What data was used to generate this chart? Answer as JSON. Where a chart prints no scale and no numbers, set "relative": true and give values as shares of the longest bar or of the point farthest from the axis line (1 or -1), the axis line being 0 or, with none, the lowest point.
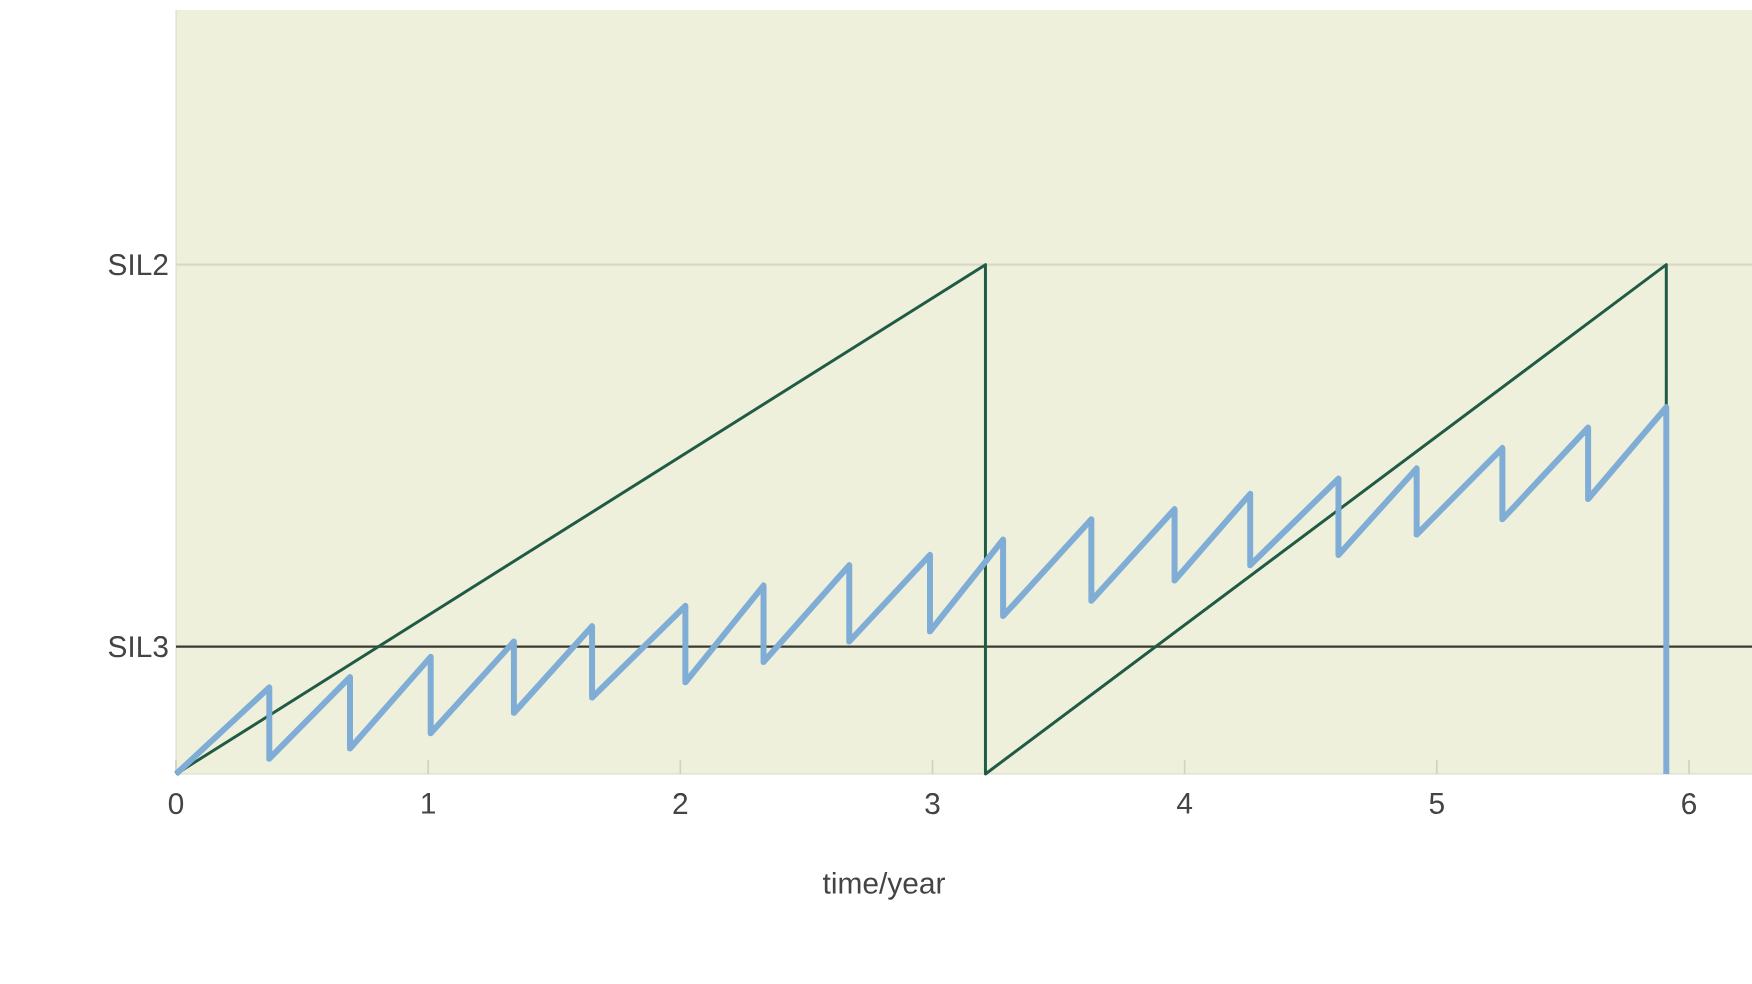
{
  "chart_data": {
    "type": "line",
    "xlabel": "time/year",
    "relative": true,
    "xlim": [
      0,
      6.25
    ],
    "xticks": [
      0,
      1,
      2,
      3,
      4,
      5,
      6
    ],
    "grid": false,
    "series": [
      {
        "color": "#1f5b45",
        "x": [
          0,
          3.21,
          3.21,
          5.91,
          5.91
        ],
        "values": [
          0,
          1,
          0,
          1,
          0.71
        ]
      },
      {
        "color": "#7fadd6",
        "x": [
          0,
          0.37,
          0.37,
          0.69,
          0.69,
          1.01,
          1.01,
          1.34,
          1.34,
          1.65,
          1.65,
          2.02,
          2.02,
          2.33,
          2.33,
          2.67,
          2.67,
          2.99,
          2.99,
          3.28,
          3.28,
          3.63,
          3.63,
          3.96,
          3.96,
          4.26,
          4.26,
          4.61,
          4.61,
          4.92,
          4.92,
          5.26,
          5.26,
          5.6,
          5.6,
          5.91,
          5.91
        ],
        "values": [
          0,
          0.17,
          0.03,
          0.19,
          0.05,
          0.23,
          0.08,
          0.26,
          0.12,
          0.29,
          0.15,
          0.33,
          0.18,
          0.37,
          0.22,
          0.41,
          0.26,
          0.43,
          0.28,
          0.46,
          0.31,
          0.5,
          0.34,
          0.52,
          0.38,
          0.55,
          0.41,
          0.58,
          0.43,
          0.6,
          0.47,
          0.64,
          0.5,
          0.68,
          0.54,
          0.72,
          0
        ]
      }
    ],
    "ref_lines": [
      {
        "axis": "y",
        "value": 0.25,
        "label": "SIL3",
        "color": "#3a3a32"
      },
      {
        "axis": "y",
        "value": 1,
        "label": "SIL2",
        "color": "#d8d8c8"
      }
    ]
  }
}
